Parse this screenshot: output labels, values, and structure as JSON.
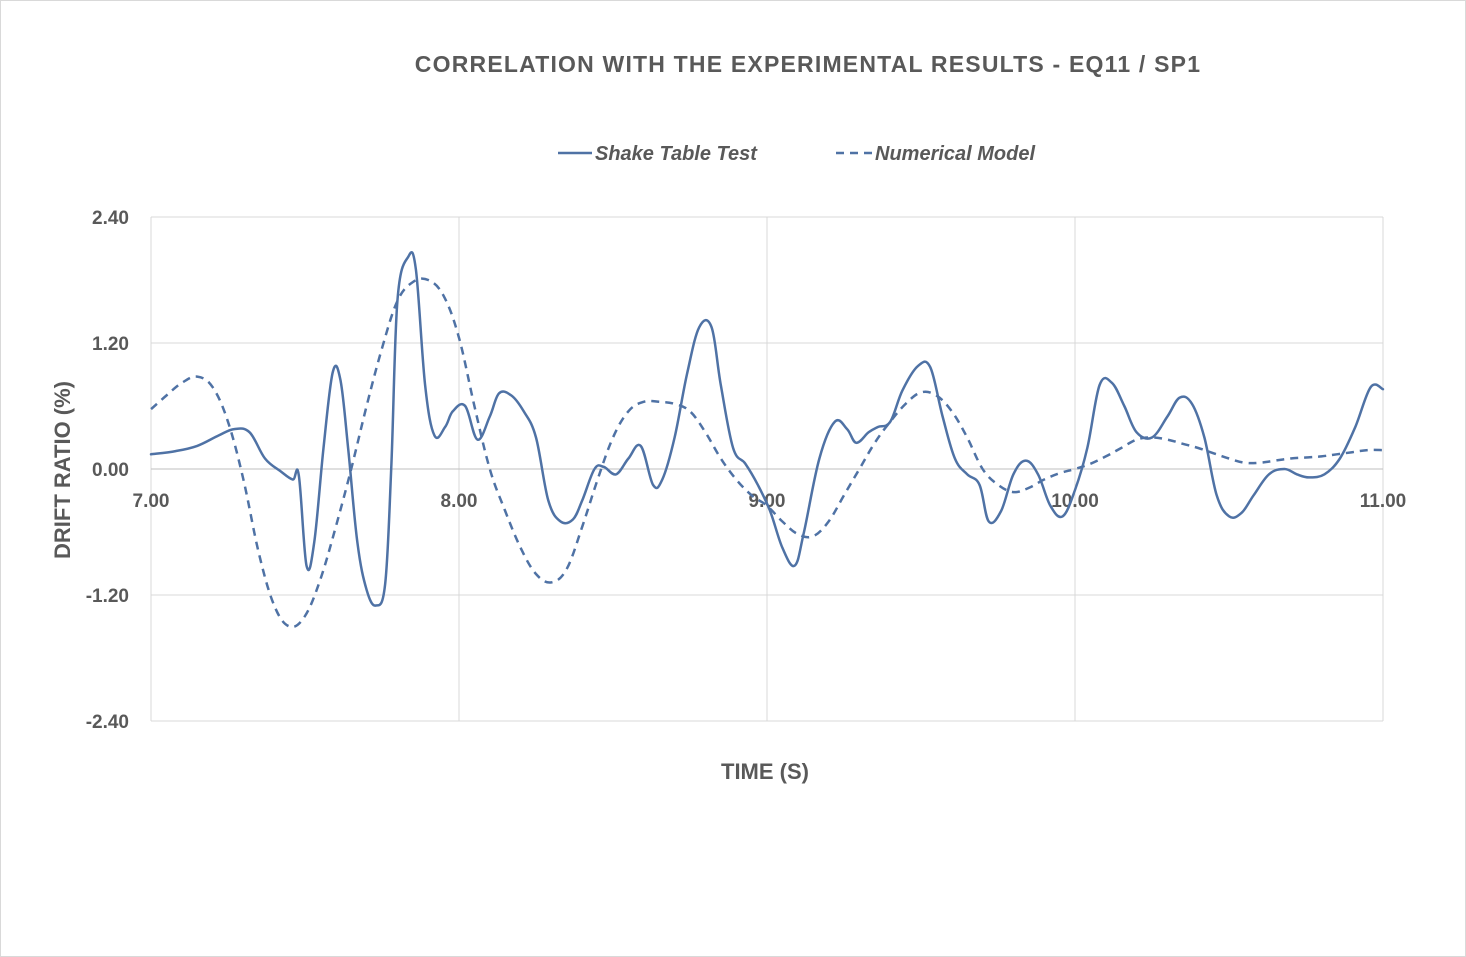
{
  "chart_data": {
    "type": "line",
    "title": "CORRELATION WITH THE EXPERIMENTAL RESULTS - EQ11 / SP1",
    "xlabel": "TIME (S)",
    "ylabel": "DRIFT RATIO (%)",
    "xlim": [
      7.0,
      11.0
    ],
    "ylim": [
      -2.4,
      2.4
    ],
    "xticks": [
      7.0,
      8.0,
      9.0,
      10.0,
      11.0
    ],
    "xtick_labels": [
      "7.00",
      "8.00",
      "9.00",
      "10.00",
      "11.00"
    ],
    "yticks": [
      2.4,
      1.2,
      0.0,
      -1.2,
      -2.4
    ],
    "ytick_labels": [
      "2.40",
      "1.20",
      "0.00",
      "-1.20",
      "-2.40"
    ],
    "grid": true,
    "legend_position": "top",
    "series": [
      {
        "name": "Shake Table Test",
        "style": "solid",
        "color": "#4f72a5",
        "x": [
          7.0,
          7.08,
          7.15,
          7.22,
          7.27,
          7.32,
          7.37,
          7.42,
          7.46,
          7.48,
          7.505,
          7.53,
          7.56,
          7.59,
          7.615,
          7.64,
          7.67,
          7.7,
          7.73,
          7.76,
          7.78,
          7.8,
          7.835,
          7.86,
          7.89,
          7.92,
          7.955,
          7.98,
          8.02,
          8.06,
          8.1,
          8.13,
          8.17,
          8.21,
          8.25,
          8.29,
          8.33,
          8.37,
          8.4,
          8.44,
          8.47,
          8.51,
          8.55,
          8.59,
          8.63,
          8.66,
          8.7,
          8.74,
          8.78,
          8.82,
          8.85,
          8.89,
          8.93,
          8.97,
          9.01,
          9.05,
          9.09,
          9.12,
          9.17,
          9.22,
          9.26,
          9.29,
          9.33,
          9.36,
          9.4,
          9.44,
          9.49,
          9.53,
          9.57,
          9.61,
          9.65,
          9.69,
          9.72,
          9.76,
          9.8,
          9.84,
          9.88,
          9.92,
          9.96,
          10.0,
          10.04,
          10.08,
          10.12,
          10.16,
          10.2,
          10.25,
          10.3,
          10.34,
          10.38,
          10.42,
          10.46,
          10.5,
          10.54,
          10.58,
          10.63,
          10.68,
          10.72,
          10.76,
          10.81,
          10.86,
          10.91,
          10.96,
          11.0
        ],
        "y": [
          0.14,
          0.17,
          0.22,
          0.32,
          0.38,
          0.35,
          0.1,
          -0.02,
          -0.1,
          -0.06,
          -0.92,
          -0.7,
          0.2,
          0.92,
          0.85,
          0.2,
          -0.7,
          -1.15,
          -1.3,
          -1.1,
          0.0,
          1.6,
          2.02,
          1.9,
          0.8,
          0.32,
          0.4,
          0.55,
          0.6,
          0.28,
          0.5,
          0.72,
          0.7,
          0.55,
          0.3,
          -0.3,
          -0.5,
          -0.48,
          -0.3,
          0.0,
          0.02,
          -0.05,
          0.1,
          0.22,
          -0.15,
          -0.1,
          0.3,
          0.9,
          1.35,
          1.35,
          0.8,
          0.2,
          0.05,
          -0.15,
          -0.4,
          -0.75,
          -0.92,
          -0.6,
          0.1,
          0.45,
          0.38,
          0.25,
          0.35,
          0.4,
          0.45,
          0.75,
          0.98,
          0.97,
          0.5,
          0.1,
          -0.05,
          -0.15,
          -0.5,
          -0.4,
          -0.05,
          0.08,
          -0.05,
          -0.35,
          -0.45,
          -0.2,
          0.2,
          0.8,
          0.82,
          0.6,
          0.35,
          0.3,
          0.5,
          0.68,
          0.62,
          0.3,
          -0.25,
          -0.45,
          -0.42,
          -0.25,
          -0.05,
          0.0,
          -0.05,
          -0.08,
          -0.05,
          0.1,
          0.4,
          0.78,
          0.76
        ]
      },
      {
        "name": "Numerical Model",
        "style": "dashed",
        "color": "#4f72a5",
        "x": [
          7.0,
          7.05,
          7.1,
          7.15,
          7.2,
          7.25,
          7.3,
          7.35,
          7.4,
          7.45,
          7.5,
          7.55,
          7.6,
          7.65,
          7.7,
          7.75,
          7.8,
          7.85,
          7.9,
          7.95,
          8.0,
          8.05,
          8.1,
          8.15,
          8.2,
          8.25,
          8.3,
          8.35,
          8.4,
          8.45,
          8.5,
          8.55,
          8.6,
          8.65,
          8.7,
          8.75,
          8.8,
          8.85,
          8.9,
          8.95,
          9.0,
          9.05,
          9.1,
          9.15,
          9.2,
          9.25,
          9.3,
          9.35,
          9.4,
          9.45,
          9.5,
          9.55,
          9.6,
          9.65,
          9.7,
          9.75,
          9.8,
          9.85,
          9.9,
          9.95,
          10.0,
          10.05,
          10.1,
          10.15,
          10.2,
          10.25,
          10.3,
          10.35,
          10.4,
          10.45,
          10.5,
          10.55,
          10.6,
          10.65,
          10.7,
          10.75,
          10.8,
          10.85,
          10.9,
          10.95,
          11.0
        ],
        "y": [
          0.57,
          0.7,
          0.82,
          0.88,
          0.78,
          0.45,
          -0.1,
          -0.8,
          -1.3,
          -1.5,
          -1.4,
          -1.05,
          -0.55,
          0.0,
          0.6,
          1.15,
          1.6,
          1.78,
          1.8,
          1.65,
          1.25,
          0.6,
          0.0,
          -0.4,
          -0.75,
          -1.0,
          -1.08,
          -0.95,
          -0.55,
          -0.1,
          0.3,
          0.55,
          0.64,
          0.64,
          0.62,
          0.55,
          0.35,
          0.1,
          -0.1,
          -0.25,
          -0.35,
          -0.5,
          -0.62,
          -0.64,
          -0.5,
          -0.25,
          0.0,
          0.25,
          0.45,
          0.62,
          0.73,
          0.7,
          0.55,
          0.3,
          0.0,
          -0.15,
          -0.22,
          -0.18,
          -0.1,
          -0.04,
          0.0,
          0.05,
          0.12,
          0.2,
          0.28,
          0.3,
          0.28,
          0.24,
          0.2,
          0.15,
          0.1,
          0.06,
          0.06,
          0.08,
          0.1,
          0.11,
          0.12,
          0.14,
          0.16,
          0.18,
          0.18
        ]
      }
    ]
  }
}
